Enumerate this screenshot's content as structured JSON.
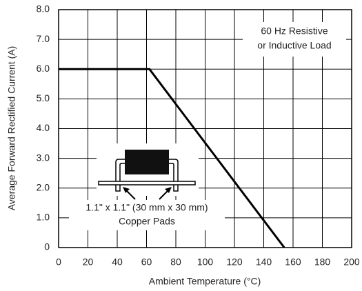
{
  "chart_data": {
    "type": "line",
    "x_label": "Ambient Temperature (°C)",
    "y_label": "Average Forward Rectified Current (A)",
    "x": [
      0,
      62,
      154
    ],
    "values": [
      6,
      6,
      0
    ],
    "color": "#000000",
    "xlim": [
      0,
      200
    ],
    "xticks": [
      0,
      20,
      40,
      60,
      80,
      100,
      120,
      140,
      160,
      180,
      200
    ],
    "ylim": [
      0,
      8
    ],
    "yticks": [
      0,
      {
        "value": 1,
        "label": "1.0"
      },
      {
        "value": 2,
        "label": "2.0"
      },
      {
        "value": 3,
        "label": "3.0"
      },
      {
        "value": 4,
        "label": "4.0"
      },
      {
        "value": 5,
        "label": "5.0"
      },
      {
        "value": 6,
        "label": "6.0"
      },
      {
        "value": 7,
        "label": "7.0"
      },
      {
        "value": 8,
        "label": "8.0"
      }
    ],
    "grid": true,
    "annotations": [
      "60 Hz Resistive",
      "or Inductive Load",
      "1.1\" x 1.1\" (30 mm x 30 mm)",
      "Copper Pads"
    ]
  }
}
